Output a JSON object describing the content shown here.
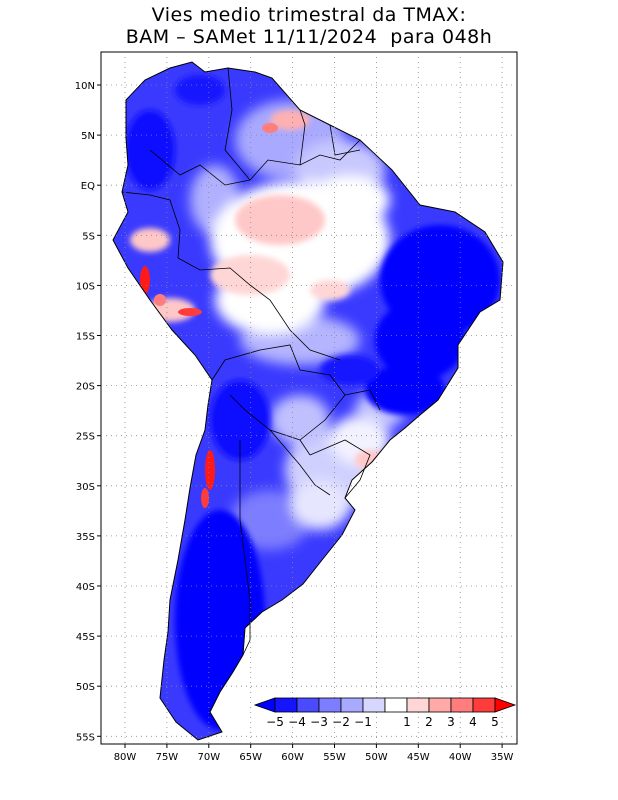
{
  "title": {
    "line1": "Vies medio trimestral da TMAX:",
    "line2": "BAM – SAMet 11/11/2024  para 048h"
  },
  "lat_ticks": [
    "10N",
    "5N",
    "EQ",
    "5S",
    "10S",
    "15S",
    "20S",
    "25S",
    "30S",
    "35S",
    "40S",
    "45S",
    "50S",
    "55S"
  ],
  "lon_ticks": [
    "80W",
    "75W",
    "70W",
    "65W",
    "60W",
    "55W",
    "50W",
    "45W",
    "40W",
    "35W"
  ],
  "colorbar": {
    "labels": [
      "−5",
      "−4",
      "−3",
      "−2",
      "−1",
      "1",
      "2",
      "3",
      "4",
      "5"
    ],
    "colors": [
      "#1414ff",
      "#4a4aff",
      "#7d7dff",
      "#a9a9ff",
      "#d6d6ff",
      "#ffffff",
      "#ffd6d6",
      "#ffa9a9",
      "#ff7d7d",
      "#ff3c3c",
      "#ff0000"
    ],
    "under_color": "#0000ff",
    "over_color": "#ff0000"
  },
  "colors": {
    "land_missing": "#ffffff",
    "ocean": "#ffffff",
    "grid": "#888888",
    "frame": "#000000",
    "border": "#000000",
    "strong_negative": "#0000ff",
    "negative": "#4a4aff",
    "weak_negative": "#a9a9ff",
    "neutral": "#ffffff",
    "weak_positive": "#ffc8c8",
    "strong_positive": "#ff1a1a"
  }
}
